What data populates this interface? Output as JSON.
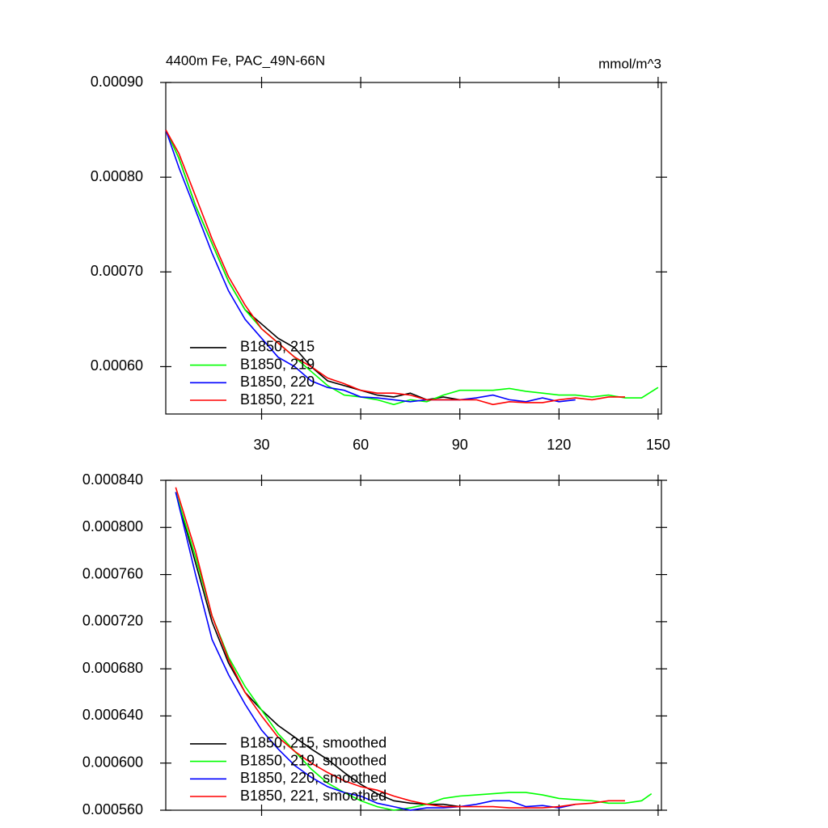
{
  "chart_data": [
    {
      "type": "line",
      "title": "4400m Fe, PAC_49N-66N",
      "units": "mmol/m^3",
      "legend": "lower left",
      "xlim": [
        1,
        151
      ],
      "xticks": [
        30,
        60,
        90,
        120,
        150
      ],
      "ylim": [
        0.00055,
        0.0009
      ],
      "yticks": [
        {
          "value": 0.0006,
          "label": "0.00060"
        },
        {
          "value": 0.0007,
          "label": "0.00070"
        },
        {
          "value": 0.0008,
          "label": "0.00080"
        },
        {
          "value": 0.0009,
          "label": "0.00090"
        }
      ],
      "series": [
        {
          "name": "B1850, 215",
          "color": "#000000",
          "x": [
            1,
            5,
            10,
            15,
            20,
            25,
            30,
            35,
            40,
            45,
            50,
            55,
            60,
            65,
            70,
            75,
            80,
            85,
            90
          ],
          "values": [
            0.00085,
            0.00082,
            0.00077,
            0.00073,
            0.00069,
            0.00066,
            0.000645,
            0.00063,
            0.00062,
            0.0006,
            0.000585,
            0.00058,
            0.000575,
            0.00057,
            0.000568,
            0.000572,
            0.000565,
            0.000568,
            0.000565
          ]
        },
        {
          "name": "B1850, 219",
          "color": "#00ff00",
          "x": [
            1,
            5,
            10,
            15,
            20,
            25,
            30,
            35,
            40,
            45,
            50,
            55,
            60,
            65,
            70,
            75,
            80,
            85,
            90,
            95,
            100,
            105,
            110,
            115,
            120,
            125,
            130,
            135,
            140,
            145,
            150
          ],
          "values": [
            0.00085,
            0.00082,
            0.00077,
            0.00073,
            0.00069,
            0.00066,
            0.00064,
            0.000625,
            0.00061,
            0.000595,
            0.00058,
            0.00057,
            0.000568,
            0.000565,
            0.00056,
            0.000565,
            0.000563,
            0.00057,
            0.000575,
            0.000575,
            0.000575,
            0.000577,
            0.000574,
            0.000572,
            0.00057,
            0.00057,
            0.000568,
            0.00057,
            0.000567,
            0.000567,
            0.000578
          ]
        },
        {
          "name": "B1850, 220",
          "color": "#0000ff",
          "x": [
            1,
            5,
            10,
            15,
            20,
            25,
            30,
            35,
            40,
            45,
            50,
            55,
            60,
            65,
            70,
            75,
            80,
            85,
            90,
            95,
            100,
            105,
            110,
            115,
            120,
            125
          ],
          "values": [
            0.00085,
            0.00081,
            0.000765,
            0.00072,
            0.00068,
            0.00065,
            0.00063,
            0.00061,
            0.0006,
            0.000585,
            0.000578,
            0.000575,
            0.000568,
            0.000567,
            0.000565,
            0.000563,
            0.000565,
            0.000565,
            0.000565,
            0.000567,
            0.00057,
            0.000565,
            0.000563,
            0.000567,
            0.000563,
            0.000565
          ]
        },
        {
          "name": "B1850, 221",
          "color": "#ff0000",
          "x": [
            1,
            5,
            10,
            15,
            20,
            25,
            30,
            35,
            40,
            45,
            50,
            55,
            60,
            65,
            70,
            75,
            80,
            85,
            90,
            95,
            100,
            105,
            110,
            115,
            120,
            125,
            130,
            135,
            140
          ],
          "values": [
            0.00085,
            0.000825,
            0.00078,
            0.000735,
            0.000695,
            0.000665,
            0.00064,
            0.000625,
            0.00061,
            0.0006,
            0.000588,
            0.000582,
            0.000575,
            0.000572,
            0.000572,
            0.00057,
            0.000565,
            0.000565,
            0.000565,
            0.000565,
            0.00056,
            0.000563,
            0.000562,
            0.000562,
            0.000565,
            0.000567,
            0.000565,
            0.000568,
            0.000568
          ]
        }
      ]
    },
    {
      "type": "line",
      "legend": "lower left",
      "xlim": [
        1,
        151
      ],
      "xticks": [
        30,
        60,
        90,
        120,
        150
      ],
      "ylim": [
        0.00056,
        0.00084
      ],
      "yticks": [
        {
          "value": 0.00056,
          "label": "0.000560"
        },
        {
          "value": 0.0006,
          "label": "0.000600"
        },
        {
          "value": 0.00064,
          "label": "0.000640"
        },
        {
          "value": 0.00068,
          "label": "0.000680"
        },
        {
          "value": 0.00072,
          "label": "0.000720"
        },
        {
          "value": 0.00076,
          "label": "0.000760"
        },
        {
          "value": 0.0008,
          "label": "0.000800"
        },
        {
          "value": 0.00084,
          "label": "0.000840"
        }
      ],
      "series": [
        {
          "name": "B1850, 215, smoothed",
          "color": "#000000",
          "x": [
            4,
            10,
            15,
            20,
            25,
            30,
            35,
            40,
            45,
            50,
            55,
            60,
            65,
            70,
            75,
            80,
            85,
            90
          ],
          "values": [
            0.00083,
            0.00077,
            0.00072,
            0.000685,
            0.00066,
            0.000645,
            0.000632,
            0.000622,
            0.000612,
            0.000603,
            0.000592,
            0.000582,
            0.000574,
            0.000568,
            0.000566,
            0.000565,
            0.000565,
            0.000563
          ]
        },
        {
          "name": "B1850, 219, smoothed",
          "color": "#00ff00",
          "x": [
            4,
            10,
            15,
            20,
            25,
            30,
            35,
            40,
            45,
            50,
            55,
            60,
            65,
            70,
            75,
            80,
            85,
            90,
            95,
            100,
            105,
            110,
            115,
            120,
            125,
            130,
            135,
            140,
            145,
            148
          ],
          "values": [
            0.00083,
            0.000775,
            0.000725,
            0.00069,
            0.000665,
            0.000645,
            0.000625,
            0.00061,
            0.000595,
            0.000583,
            0.000575,
            0.000568,
            0.000563,
            0.00056,
            0.000562,
            0.000565,
            0.00057,
            0.000572,
            0.000573,
            0.000574,
            0.000575,
            0.000575,
            0.000573,
            0.00057,
            0.000569,
            0.000568,
            0.000566,
            0.000566,
            0.000568,
            0.000574
          ]
        },
        {
          "name": "B1850, 220, smoothed",
          "color": "#0000ff",
          "x": [
            4,
            10,
            15,
            20,
            25,
            30,
            35,
            40,
            45,
            50,
            55,
            60,
            65,
            70,
            75,
            80,
            85,
            90,
            95,
            100,
            105,
            110,
            115,
            120,
            125
          ],
          "values": [
            0.00083,
            0.00076,
            0.000705,
            0.000675,
            0.00065,
            0.000628,
            0.000612,
            0.000598,
            0.000588,
            0.00058,
            0.000575,
            0.000572,
            0.000566,
            0.000563,
            0.00056,
            0.000562,
            0.000562,
            0.000563,
            0.000565,
            0.000568,
            0.000568,
            0.000563,
            0.000564,
            0.000562,
            0.000565
          ]
        },
        {
          "name": "B1850, 221, smoothed",
          "color": "#ff0000",
          "x": [
            4,
            10,
            15,
            20,
            25,
            30,
            35,
            40,
            45,
            50,
            55,
            60,
            65,
            70,
            75,
            80,
            85,
            90,
            95,
            100,
            105,
            110,
            115,
            120,
            125,
            130,
            135,
            140
          ],
          "values": [
            0.000834,
            0.00078,
            0.000725,
            0.000688,
            0.00066,
            0.00064,
            0.000622,
            0.00061,
            0.0006,
            0.000592,
            0.000585,
            0.00058,
            0.000577,
            0.000572,
            0.000568,
            0.000565,
            0.000563,
            0.000563,
            0.000563,
            0.000563,
            0.000562,
            0.000562,
            0.000562,
            0.000563,
            0.000565,
            0.000566,
            0.000568,
            0.000568
          ]
        }
      ]
    }
  ]
}
